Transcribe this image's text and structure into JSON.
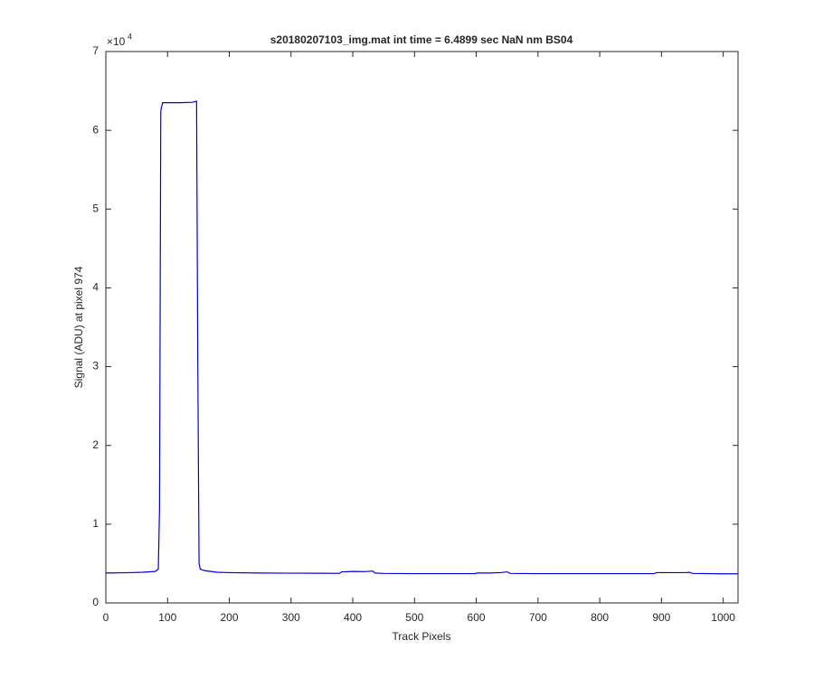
{
  "chart_data": {
    "type": "line",
    "title": "s20180207103_img.mat int time = 6.4899 sec  NaN nm BS04",
    "x_label": "Track Pixels",
    "y_label": "Signal (ADU) at pixel 974",
    "y_exponent_base": "×10",
    "y_exponent_power": "4",
    "x": [
      0,
      20,
      40,
      60,
      80,
      85,
      87,
      89,
      92,
      100,
      120,
      140,
      147,
      149,
      151,
      153,
      160,
      180,
      200,
      250,
      300,
      350,
      378,
      382,
      400,
      420,
      432,
      436,
      450,
      500,
      550,
      598,
      602,
      620,
      640,
      650,
      655,
      700,
      750,
      800,
      850,
      888,
      892,
      920,
      940,
      945,
      950,
      1000,
      1024
    ],
    "series": [
      {
        "color": "#0000e0",
        "values": [
          3800,
          3820,
          3850,
          3900,
          4000,
          4300,
          12000,
          62500,
          63500,
          63500,
          63500,
          63550,
          63700,
          30000,
          5000,
          4300,
          4100,
          3900,
          3850,
          3800,
          3780,
          3770,
          3750,
          3950,
          4000,
          3980,
          4050,
          3800,
          3750,
          3720,
          3720,
          3730,
          3800,
          3800,
          3850,
          3950,
          3750,
          3720,
          3720,
          3720,
          3720,
          3720,
          3850,
          3850,
          3850,
          3900,
          3750,
          3700,
          3700
        ]
      }
    ],
    "xlim": [
      0,
      1024
    ],
    "xticks": [
      0,
      100,
      200,
      300,
      400,
      500,
      600,
      700,
      800,
      900,
      1000
    ],
    "ylim": [
      0,
      70000
    ],
    "yticks": [
      {
        "value": 0,
        "label": "0"
      },
      {
        "value": 10000,
        "label": "1"
      },
      {
        "value": 20000,
        "label": "2"
      },
      {
        "value": 30000,
        "label": "3"
      },
      {
        "value": 40000,
        "label": "4"
      },
      {
        "value": 50000,
        "label": "5"
      },
      {
        "value": 60000,
        "label": "6"
      },
      {
        "value": 70000,
        "label": "7"
      }
    ],
    "grid": false
  }
}
